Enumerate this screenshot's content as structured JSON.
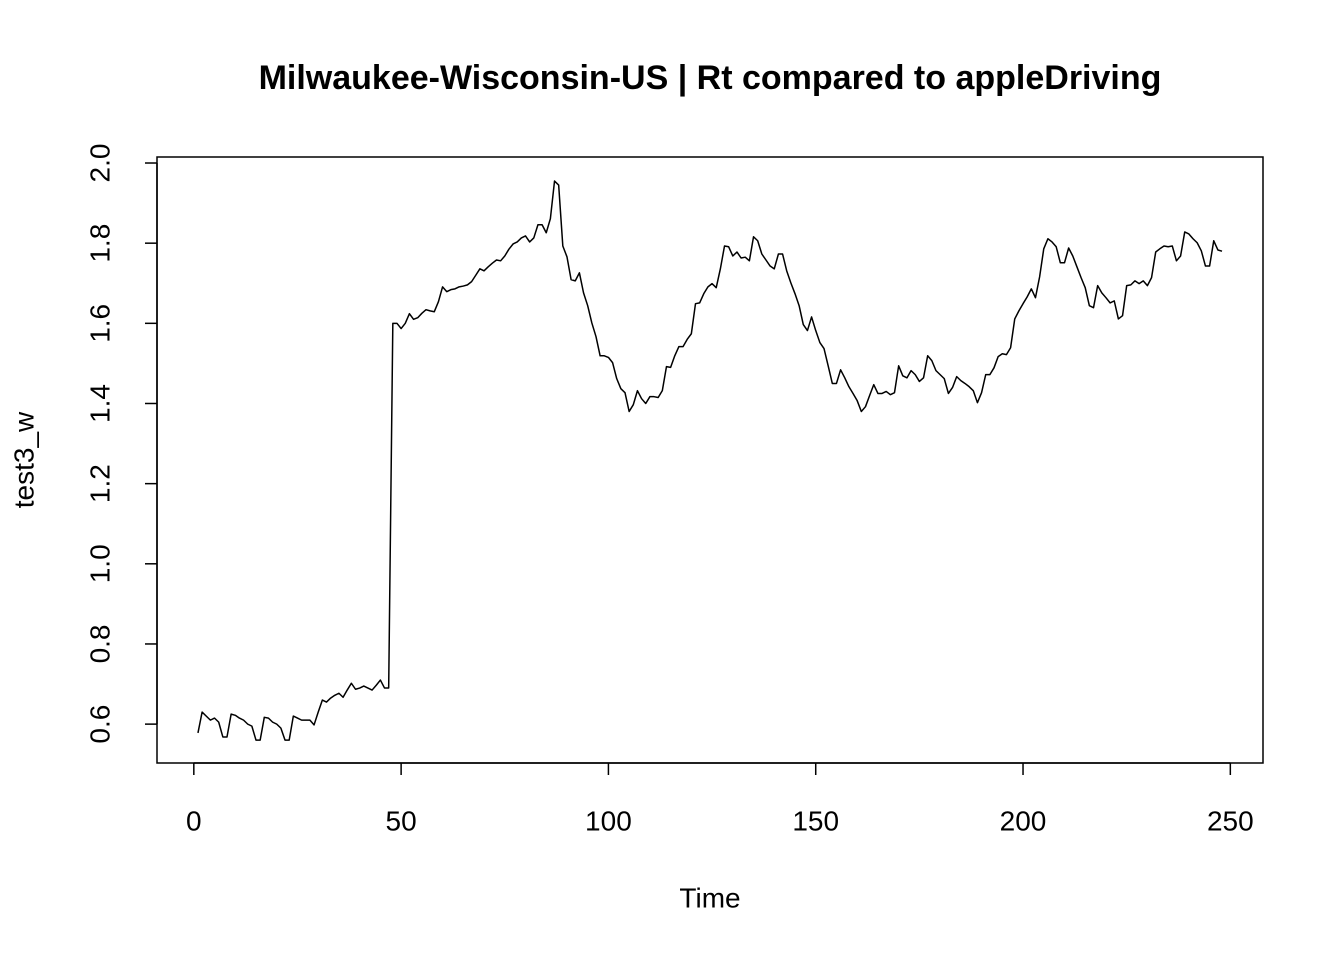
{
  "chart_data": {
    "type": "line",
    "title": "Milwaukee-Wisconsin-US | Rt compared to appleDriving",
    "xlabel": "Time",
    "ylabel": "test3_w",
    "xlim": [
      -8.88,
      257.88
    ],
    "ylim": [
      0.503,
      2.015
    ],
    "xticks": [
      0,
      50,
      100,
      150,
      200,
      250
    ],
    "yticks": [
      0.6,
      0.8,
      {
        "value": 1,
        "label": "1.0"
      },
      1.2,
      1.4,
      1.6,
      1.8,
      {
        "value": 2,
        "label": "2.0"
      }
    ],
    "series": [
      {
        "name": "test3_w",
        "color": "#000000",
        "x": [
          1,
          2,
          3,
          4,
          5,
          6,
          7,
          8,
          9,
          10,
          11,
          12,
          13,
          14,
          15,
          16,
          17,
          18,
          19,
          20,
          21,
          22,
          23,
          24,
          25,
          26,
          27,
          28,
          29,
          30,
          31,
          32,
          33,
          34,
          35,
          36,
          37,
          38,
          39,
          40,
          41,
          42,
          43,
          44,
          45,
          46,
          47,
          48,
          49,
          50,
          51,
          52,
          53,
          54,
          55,
          56,
          57,
          58,
          59,
          60,
          61,
          62,
          63,
          64,
          65,
          66,
          67,
          68,
          69,
          70,
          71,
          72,
          73,
          74,
          75,
          76,
          77,
          78,
          79,
          80,
          81,
          82,
          83,
          84,
          85,
          86,
          87,
          88,
          89,
          90,
          91,
          92,
          93,
          94,
          95,
          96,
          97,
          98,
          99,
          100,
          101,
          102,
          103,
          104,
          105,
          106,
          107,
          108,
          109,
          110,
          111,
          112,
          113,
          114,
          115,
          116,
          117,
          118,
          119,
          120,
          121,
          122,
          123,
          124,
          125,
          126,
          127,
          128,
          129,
          130,
          131,
          132,
          133,
          134,
          135,
          136,
          137,
          138,
          139,
          140,
          141,
          142,
          143,
          144,
          145,
          146,
          147,
          148,
          149,
          150,
          151,
          152,
          153,
          154,
          155,
          156,
          157,
          158,
          159,
          160,
          161,
          162,
          163,
          164,
          165,
          166,
          167,
          168,
          169,
          170,
          171,
          172,
          173,
          174,
          175,
          176,
          177,
          178,
          179,
          180,
          181,
          182,
          183,
          184,
          185,
          186,
          187,
          188,
          189,
          190,
          191,
          192,
          193,
          194,
          195,
          196,
          197,
          198,
          199,
          200,
          201,
          202,
          203,
          204,
          205,
          206,
          207,
          208,
          209,
          210,
          211,
          212,
          213,
          214,
          215,
          216,
          217,
          218,
          219,
          220,
          221,
          222,
          223,
          224,
          225,
          226,
          227,
          228,
          229,
          230,
          231,
          232,
          233,
          234,
          235,
          236,
          237,
          238,
          239,
          240,
          241,
          242,
          243,
          244,
          245,
          246,
          247,
          248
        ],
        "values": [
          0.578,
          0.63,
          0.62,
          0.61,
          0.615,
          0.605,
          0.568,
          0.568,
          0.625,
          0.622,
          0.615,
          0.61,
          0.6,
          0.595,
          0.56,
          0.56,
          0.617,
          0.615,
          0.605,
          0.6,
          0.59,
          0.56,
          0.56,
          0.62,
          0.615,
          0.61,
          0.61,
          0.61,
          0.598,
          0.63,
          0.66,
          0.655,
          0.665,
          0.672,
          0.677,
          0.667,
          0.685,
          0.702,
          0.687,
          0.69,
          0.695,
          0.69,
          0.685,
          0.697,
          0.71,
          0.69,
          0.69,
          1.6,
          1.6,
          1.587,
          1.6,
          1.624,
          1.61,
          1.614,
          1.625,
          1.634,
          1.631,
          1.629,
          1.654,
          1.691,
          1.679,
          1.684,
          1.686,
          1.691,
          1.693,
          1.696,
          1.704,
          1.72,
          1.736,
          1.731,
          1.741,
          1.75,
          1.758,
          1.756,
          1.768,
          1.785,
          1.798,
          1.803,
          1.813,
          1.818,
          1.803,
          1.813,
          1.846,
          1.846,
          1.826,
          1.861,
          1.955,
          1.945,
          1.793,
          1.766,
          1.709,
          1.706,
          1.726,
          1.676,
          1.644,
          1.601,
          1.567,
          1.519,
          1.519,
          1.515,
          1.502,
          1.462,
          1.437,
          1.427,
          1.38,
          1.397,
          1.432,
          1.412,
          1.4,
          1.417,
          1.417,
          1.415,
          1.432,
          1.492,
          1.49,
          1.519,
          1.542,
          1.542,
          1.56,
          1.574,
          1.649,
          1.651,
          1.674,
          1.691,
          1.699,
          1.689,
          1.736,
          1.793,
          1.791,
          1.768,
          1.778,
          1.763,
          1.765,
          1.756,
          1.816,
          1.806,
          1.773,
          1.758,
          1.743,
          1.736,
          1.773,
          1.773,
          1.731,
          1.701,
          1.674,
          1.644,
          1.597,
          1.582,
          1.616,
          1.582,
          1.552,
          1.537,
          1.494,
          1.45,
          1.45,
          1.484,
          1.464,
          1.442,
          1.425,
          1.407,
          1.38,
          1.392,
          1.42,
          1.447,
          1.425,
          1.425,
          1.43,
          1.422,
          1.427,
          1.494,
          1.469,
          1.464,
          1.482,
          1.472,
          1.455,
          1.464,
          1.519,
          1.507,
          1.482,
          1.472,
          1.462,
          1.425,
          1.44,
          1.467,
          1.457,
          1.45,
          1.442,
          1.432,
          1.402,
          1.427,
          1.472,
          1.472,
          1.489,
          1.517,
          1.524,
          1.522,
          1.539,
          1.611,
          1.631,
          1.649,
          1.666,
          1.686,
          1.664,
          1.716,
          1.786,
          1.811,
          1.803,
          1.791,
          1.751,
          1.751,
          1.788,
          1.768,
          1.741,
          1.714,
          1.689,
          1.644,
          1.639,
          1.694,
          1.676,
          1.664,
          1.651,
          1.656,
          1.611,
          1.619,
          1.694,
          1.696,
          1.706,
          1.699,
          1.706,
          1.694,
          1.714,
          1.778,
          1.786,
          1.793,
          1.791,
          1.793,
          1.756,
          1.768,
          1.828,
          1.823,
          1.811,
          1.801,
          1.781,
          1.743,
          1.743,
          1.806,
          1.783,
          1.78
        ]
      }
    ]
  }
}
